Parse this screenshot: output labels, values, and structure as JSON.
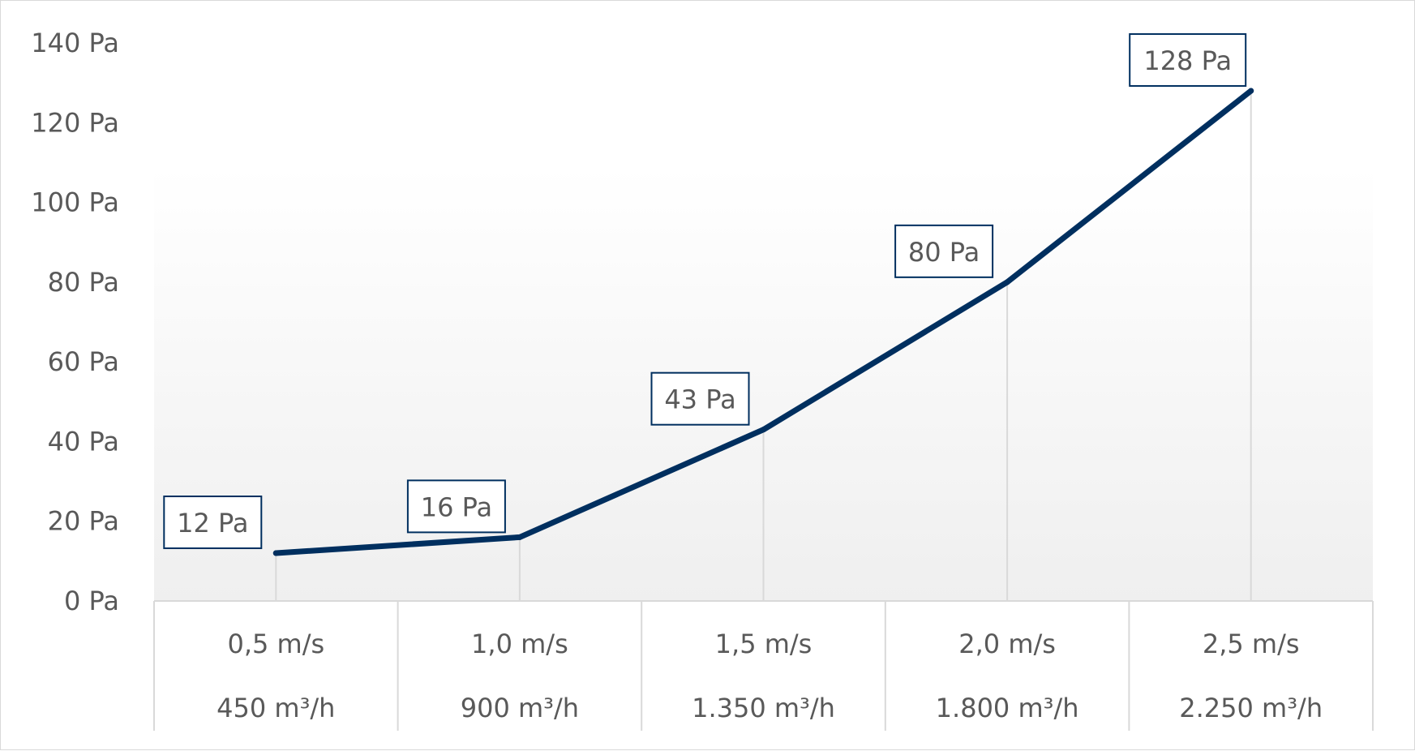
{
  "chart_data": {
    "type": "line",
    "title": "",
    "xlabel": "",
    "ylabel": "",
    "ylim": [
      0,
      140
    ],
    "y_ticks": [
      "0 Pa",
      "20 Pa",
      "40 Pa",
      "60 Pa",
      "80 Pa",
      "100 Pa",
      "120 Pa",
      "140 Pa"
    ],
    "y_tick_values": [
      0,
      20,
      40,
      60,
      80,
      100,
      120,
      140
    ],
    "categories": [
      {
        "speed": "0,5 m/s",
        "flow": "450 m³/h"
      },
      {
        "speed": "1,0 m/s",
        "flow": "900 m³/h"
      },
      {
        "speed": "1,5 m/s",
        "flow": "1.350 m³/h"
      },
      {
        "speed": "2,0 m/s",
        "flow": "1.800 m³/h"
      },
      {
        "speed": "2,5 m/s",
        "flow": "2.250 m³/h"
      }
    ],
    "series": [
      {
        "values": [
          12,
          16,
          43,
          80,
          128
        ],
        "labels": [
          "12 Pa",
          "16 Pa",
          "43 Pa",
          "80 Pa",
          "128 Pa"
        ],
        "color": "#002f5f"
      }
    ],
    "drop_lines": true,
    "grid": false,
    "legend": "none"
  }
}
